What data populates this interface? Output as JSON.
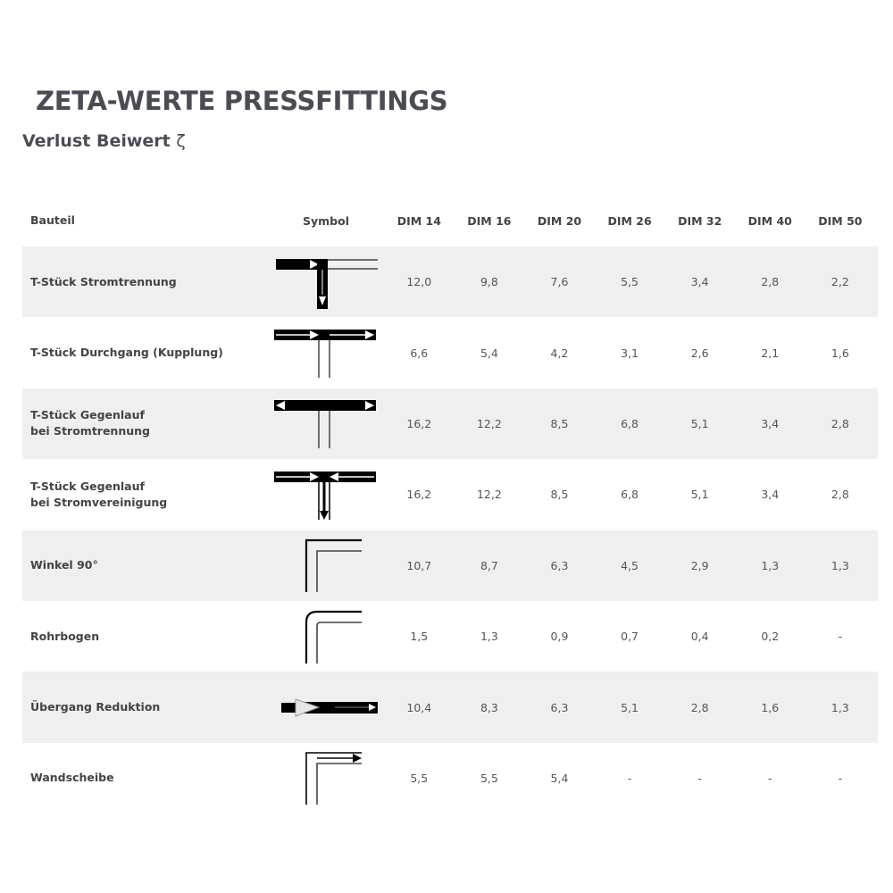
{
  "title": "ZETA-WERTE PRESSFITTINGS",
  "subtitle": "Verlust Beiwert",
  "subtitle_symbol": "ζ",
  "table": {
    "headers": [
      "Bauteil",
      "Symbol",
      "DIM 14",
      "DIM 16",
      "DIM 20",
      "DIM 26",
      "DIM 32",
      "DIM 40",
      "DIM 50"
    ],
    "rows": [
      {
        "name": [
          "T-Stück Stromtrennung"
        ],
        "symbol": "tee-split-icon",
        "values": [
          "12,0",
          "9,8",
          "7,6",
          "5,5",
          "3,4",
          "2,8",
          "2,2"
        ]
      },
      {
        "name": [
          "T-Stück Durchgang (Kupplung)"
        ],
        "symbol": "tee-through-icon",
        "values": [
          "6,6",
          "5,4",
          "4,2",
          "3,1",
          "2,6",
          "2,1",
          "1,6"
        ]
      },
      {
        "name": [
          "T-Stück Gegenlauf",
          "bei Stromtrennung"
        ],
        "symbol": "tee-counter-split-icon",
        "values": [
          "16,2",
          "12,2",
          "8,5",
          "6,8",
          "5,1",
          "3,4",
          "2,8"
        ]
      },
      {
        "name": [
          "T-Stück Gegenlauf",
          "bei Stromvereinigung"
        ],
        "symbol": "tee-counter-merge-icon",
        "values": [
          "16,2",
          "12,2",
          "8,5",
          "6,8",
          "5,1",
          "3,4",
          "2,8"
        ]
      },
      {
        "name": [
          "Winkel 90°"
        ],
        "symbol": "elbow-90-icon",
        "values": [
          "10,7",
          "8,7",
          "6,3",
          "4,5",
          "2,9",
          "1,3",
          "1,3"
        ]
      },
      {
        "name": [
          "Rohrbogen"
        ],
        "symbol": "pipe-bend-icon",
        "values": [
          "1,5",
          "1,3",
          "0,9",
          "0,7",
          "0,4",
          "0,2",
          "-"
        ]
      },
      {
        "name": [
          "Übergang Reduktion"
        ],
        "symbol": "reducer-icon",
        "values": [
          "10,4",
          "8,3",
          "6,3",
          "5,1",
          "2,8",
          "1,6",
          "1,3"
        ]
      },
      {
        "name": [
          "Wandscheibe"
        ],
        "symbol": "wall-plate-icon",
        "values": [
          "5,5",
          "5,5",
          "5,4",
          "-",
          "-",
          "-",
          "-"
        ]
      }
    ]
  }
}
